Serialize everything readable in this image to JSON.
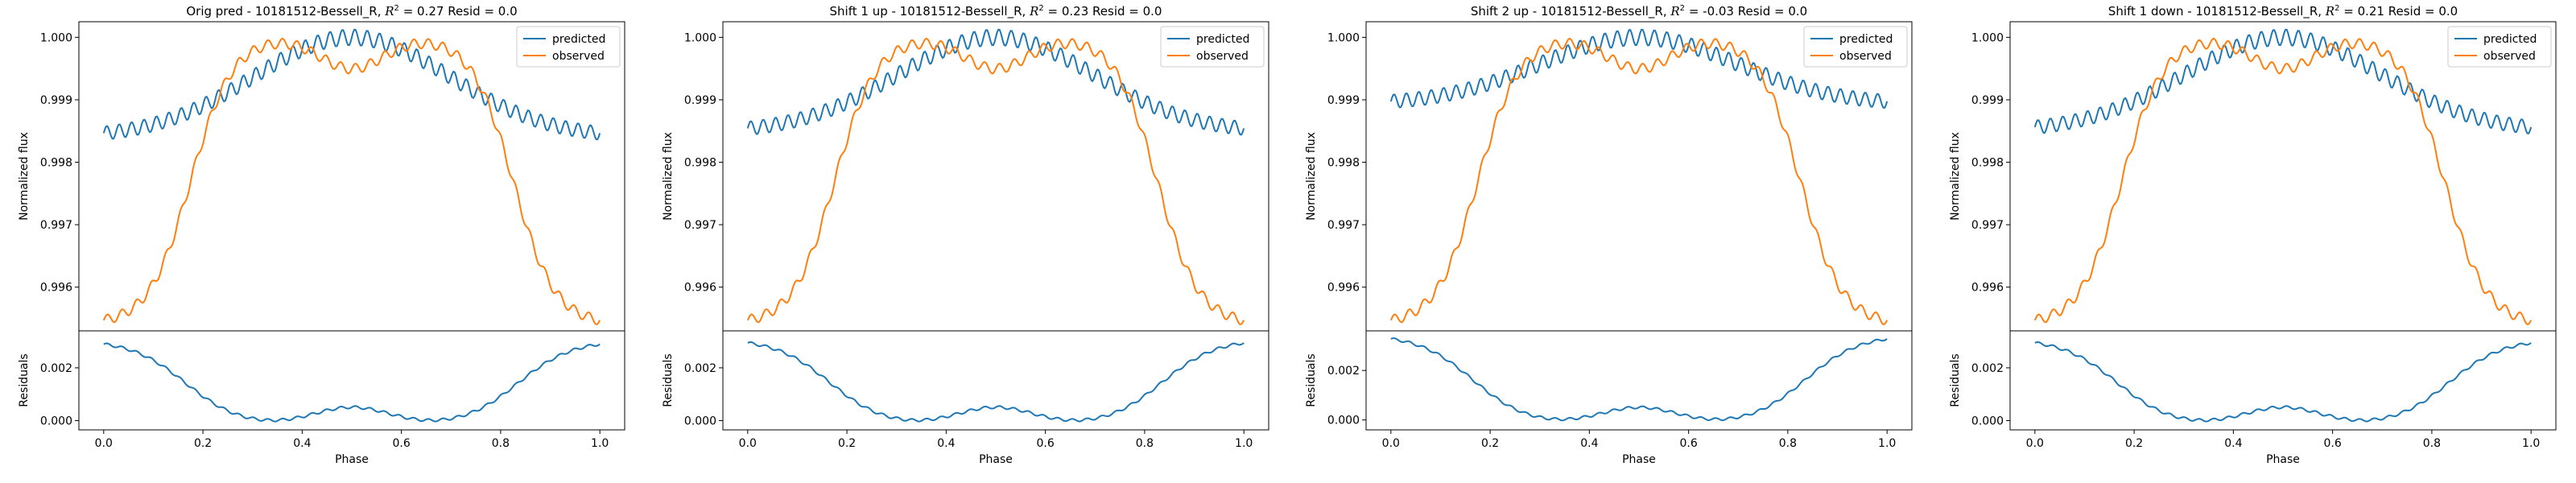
{
  "chart_data": [
    {
      "type": "line",
      "title_prefix": "Orig pred - 10181512-Bessell_R, ",
      "r2_value": "0.27",
      "title_suffix": " Resid = 0.0",
      "top": {
        "ylabel": "Normalized flux",
        "ylim": [
          0.9953,
          1.00025
        ],
        "yticks": [
          0.996,
          0.997,
          0.998,
          0.999,
          1.0
        ],
        "ytick_labels": [
          "0.996",
          "0.997",
          "0.998",
          "0.999",
          "1.000"
        ]
      },
      "bottom": {
        "ylabel": "Residuals",
        "xlabel": "Phase",
        "ylim": [
          -0.00035,
          0.0034
        ],
        "yticks": [
          0.0,
          0.002
        ],
        "ytick_labels": [
          "0.000",
          "0.002"
        ]
      },
      "xlim": [
        -0.05,
        1.05
      ],
      "xticks": [
        0.0,
        0.2,
        0.4,
        0.6,
        0.8,
        1.0
      ],
      "xtick_labels": [
        "0.0",
        "0.2",
        "0.4",
        "0.6",
        "0.8",
        "1.0"
      ],
      "legend": {
        "placement": "upper-right",
        "entries": [
          "predicted",
          "observed"
        ]
      },
      "series": [
        {
          "name": "predicted",
          "color": "#1f77b4",
          "baseline": 0.9984,
          "peak": 1.0
        },
        {
          "name": "observed",
          "color": "#ff7f0e",
          "minimum": 0.9954,
          "dip": 0.9995,
          "peak": 1.0
        },
        {
          "name": "residuals",
          "color": "#1f77b4",
          "edge": 0.00305,
          "low": -0.0002,
          "mid": 0.0005
        }
      ]
    },
    {
      "type": "line",
      "title_prefix": "Shift 1 up - 10181512-Bessell_R, ",
      "r2_value": "0.23",
      "title_suffix": " Resid = 0.0",
      "top": {
        "ylabel": "Normalized flux",
        "ylim": [
          0.9953,
          1.00025
        ],
        "yticks": [
          0.996,
          0.997,
          0.998,
          0.999,
          1.0
        ],
        "ytick_labels": [
          "0.996",
          "0.997",
          "0.998",
          "0.999",
          "1.000"
        ]
      },
      "bottom": {
        "ylabel": "Residuals",
        "xlabel": "Phase",
        "ylim": [
          -0.00035,
          0.0034
        ],
        "yticks": [
          0.0,
          0.002
        ],
        "ytick_labels": [
          "0.000",
          "0.002"
        ]
      },
      "xlim": [
        -0.05,
        1.05
      ],
      "xticks": [
        0.0,
        0.2,
        0.4,
        0.6,
        0.8,
        1.0
      ],
      "xtick_labels": [
        "0.0",
        "0.2",
        "0.4",
        "0.6",
        "0.8",
        "1.0"
      ],
      "legend": {
        "placement": "upper-right",
        "entries": [
          "predicted",
          "observed"
        ]
      },
      "series": [
        {
          "name": "predicted",
          "color": "#1f77b4",
          "baseline": 0.99848,
          "peak": 1.0
        },
        {
          "name": "observed",
          "color": "#ff7f0e",
          "minimum": 0.9954,
          "dip": 0.9995,
          "peak": 1.0
        },
        {
          "name": "residuals",
          "color": "#1f77b4",
          "edge": 0.0031,
          "low": -0.0002,
          "mid": 0.0005
        }
      ]
    },
    {
      "type": "line",
      "title_prefix": "Shift 2 up - 10181512-Bessell_R, ",
      "r2_value": "-0.03",
      "title_suffix": " Resid = 0.0",
      "top": {
        "ylabel": "Normalized flux",
        "ylim": [
          0.9953,
          1.00025
        ],
        "yticks": [
          0.996,
          0.997,
          0.998,
          0.999,
          1.0
        ],
        "ytick_labels": [
          "0.996",
          "0.997",
          "0.998",
          "0.999",
          "1.000"
        ]
      },
      "bottom": {
        "ylabel": "Residuals",
        "xlabel": "Phase",
        "ylim": [
          -0.0004,
          0.0036
        ],
        "yticks": [
          0.0,
          0.002
        ],
        "ytick_labels": [
          "0.000",
          "0.002"
        ]
      },
      "xlim": [
        -0.05,
        1.05
      ],
      "xticks": [
        0.0,
        0.2,
        0.4,
        0.6,
        0.8,
        1.0
      ],
      "xtick_labels": [
        "0.0",
        "0.2",
        "0.4",
        "0.6",
        "0.8",
        "1.0"
      ],
      "legend": {
        "placement": "upper-right",
        "entries": [
          "predicted",
          "observed"
        ]
      },
      "series": [
        {
          "name": "predicted",
          "color": "#1f77b4",
          "baseline": 0.99893,
          "peak": 1.0
        },
        {
          "name": "observed",
          "color": "#ff7f0e",
          "minimum": 0.9954,
          "dip": 0.9995,
          "peak": 1.0
        },
        {
          "name": "residuals",
          "color": "#1f77b4",
          "edge": 0.00345,
          "low": -0.0002,
          "mid": 0.0005
        }
      ]
    },
    {
      "type": "line",
      "title_prefix": "Shift 1 down - 10181512-Bessell_R, ",
      "r2_value": "0.21",
      "title_suffix": " Resid = 0.0",
      "top": {
        "ylabel": "Normalized flux",
        "ylim": [
          0.9953,
          1.00025
        ],
        "yticks": [
          0.996,
          0.997,
          0.998,
          0.999,
          1.0
        ],
        "ytick_labels": [
          "0.996",
          "0.997",
          "0.998",
          "0.999",
          "1.000"
        ]
      },
      "bottom": {
        "ylabel": "Residuals",
        "xlabel": "Phase",
        "ylim": [
          -0.00035,
          0.0034
        ],
        "yticks": [
          0.0,
          0.002
        ],
        "ytick_labels": [
          "0.000",
          "0.002"
        ]
      },
      "xlim": [
        -0.05,
        1.05
      ],
      "xticks": [
        0.0,
        0.2,
        0.4,
        0.6,
        0.8,
        1.0
      ],
      "xtick_labels": [
        "0.0",
        "0.2",
        "0.4",
        "0.6",
        "0.8",
        "1.0"
      ],
      "legend": {
        "placement": "upper-right",
        "entries": [
          "predicted",
          "observed"
        ]
      },
      "series": [
        {
          "name": "predicted",
          "color": "#1f77b4",
          "baseline": 0.9985,
          "peak": 1.0
        },
        {
          "name": "observed",
          "color": "#ff7f0e",
          "minimum": 0.9954,
          "dip": 0.9995,
          "peak": 1.0
        },
        {
          "name": "residuals",
          "color": "#1f77b4",
          "edge": 0.0031,
          "low": -0.0002,
          "mid": 0.0005
        }
      ]
    }
  ]
}
